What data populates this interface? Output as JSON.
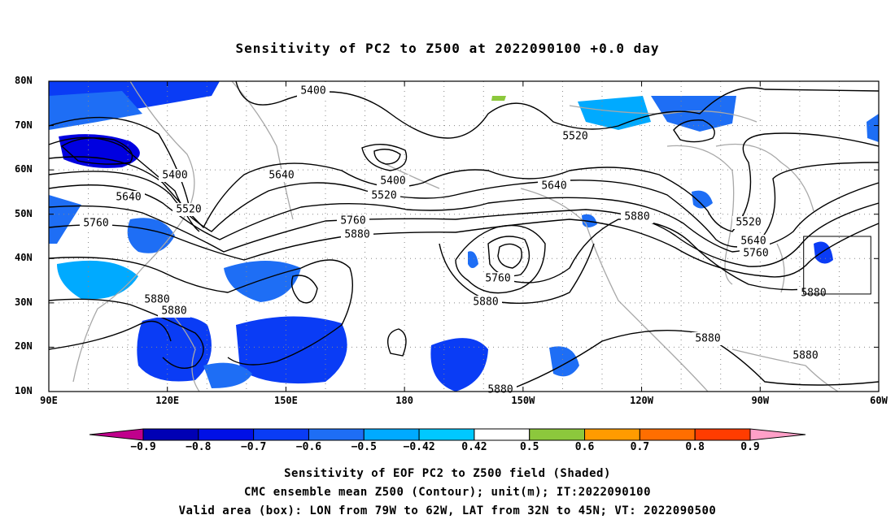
{
  "title": "Sensitivity of PC2 to Z500 at 2022090100 +0.0 day",
  "map": {
    "lon_range": [
      90,
      300
    ],
    "lat_range": [
      10,
      80
    ],
    "lat_ticks": [
      "80N",
      "70N",
      "60N",
      "50N",
      "40N",
      "30N",
      "20N",
      "10N"
    ],
    "lon_ticks": [
      "90E",
      "120E",
      "150E",
      "180",
      "150W",
      "120W",
      "90W",
      "60W"
    ],
    "grid": true,
    "valid_box": {
      "lon_west": -79,
      "lon_east": -62,
      "lat_south": 32,
      "lat_north": 45
    },
    "contour_labels": [
      "5400",
      "5520",
      "5400",
      "5640",
      "5640",
      "5520",
      "5760",
      "5400",
      "5520",
      "5760",
      "5880",
      "5640",
      "5520",
      "5880",
      "5640",
      "5760",
      "5760",
      "5880",
      "5880",
      "5880",
      "5880",
      "5880",
      "5880",
      "5880"
    ]
  },
  "colorbar": {
    "labels": [
      "-0.9",
      "-0.8",
      "-0.7",
      "-0.6",
      "-0.5",
      "-0.42",
      "0.42",
      "0.5",
      "0.6",
      "0.7",
      "0.8",
      "0.9"
    ],
    "colors": [
      "#c0008c",
      "#0000b4",
      "#0010e6",
      "#0a3cf5",
      "#1e6ef5",
      "#00aaff",
      "#00c8ff",
      "#ffffff",
      "#8cc83c",
      "#ff9b00",
      "#ff6e00",
      "#ff3c00",
      "#ff0000",
      "#ffa0c8"
    ]
  },
  "captions": [
    "Sensitivity of EOF PC2 to Z500 field (Shaded)",
    "CMC ensemble mean Z500 (Contour); unit(m); IT:2022090100",
    "Valid area (box): LON from 79W to 62W, LAT from 32N to 45N; VT: 2022090500"
  ]
}
